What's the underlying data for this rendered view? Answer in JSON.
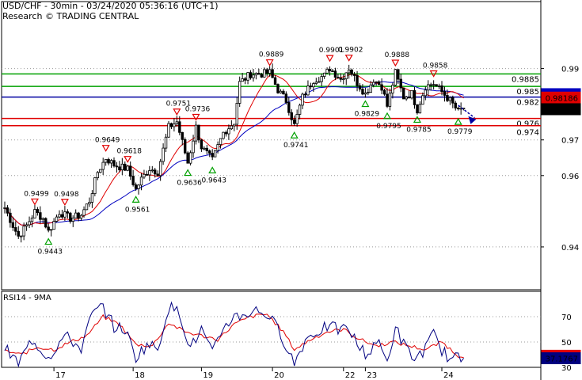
{
  "header": {
    "title": "USD/CHF - 30min - 03/24/2020 05:36:16 (UTC+1)",
    "subtitle": "Research © TRADING CENTRAL"
  },
  "colors": {
    "price": "#000000",
    "ma_short": "#e00000",
    "ma_long": "#0000c0",
    "support": "#e00000",
    "resistance": "#00a000",
    "pivot": "#0000a0",
    "current_bg": "#000000",
    "rsi_ma": "#e00000",
    "rsi": "#000080"
  },
  "chart_data": [
    {
      "type": "candlestick",
      "title": "USD/CHF - 30min - 03/24/2020 05:36:16 (UTC+1)",
      "ylim": [
        0.928,
        1.003
      ],
      "y_ticks": [
        "0.99",
        "0.97",
        "0.96",
        "0.94"
      ],
      "y_tick_values": [
        0.99,
        0.97,
        0.96,
        0.94
      ],
      "x_ticks": [
        "17",
        "18",
        "19",
        "20",
        "22",
        "23",
        "24"
      ],
      "x_tick_index": [
        18,
        47,
        72,
        98,
        124,
        132,
        160
      ],
      "n_bars": 200,
      "close_anchors": [
        [
          0,
          0.951
        ],
        [
          3,
          0.946
        ],
        [
          5,
          0.943
        ],
        [
          8,
          0.946
        ],
        [
          11,
          0.9499
        ],
        [
          14,
          0.948
        ],
        [
          16,
          0.9443
        ],
        [
          20,
          0.9498
        ],
        [
          24,
          0.948
        ],
        [
          28,
          0.949
        ],
        [
          31,
          0.953
        ],
        [
          34,
          0.961
        ],
        [
          37,
          0.9649
        ],
        [
          40,
          0.963
        ],
        [
          45,
          0.9618
        ],
        [
          48,
          0.9561
        ],
        [
          50,
          0.959
        ],
        [
          53,
          0.962
        ],
        [
          56,
          0.961
        ],
        [
          60,
          0.9736
        ],
        [
          63,
          0.9751
        ],
        [
          67,
          0.9636
        ],
        [
          70,
          0.9736
        ],
        [
          72,
          0.968
        ],
        [
          76,
          0.9643
        ],
        [
          80,
          0.972
        ],
        [
          84,
          0.975
        ],
        [
          86,
          0.986
        ],
        [
          90,
          0.9885
        ],
        [
          94,
          0.9885
        ],
        [
          97,
          0.9889
        ],
        [
          100,
          0.984
        ],
        [
          103,
          0.981
        ],
        [
          106,
          0.9741
        ],
        [
          109,
          0.982
        ],
        [
          113,
          0.9868
        ],
        [
          117,
          0.988
        ],
        [
          119,
          0.9901
        ],
        [
          123,
          0.987
        ],
        [
          126,
          0.9902
        ],
        [
          129,
          0.986
        ],
        [
          132,
          0.9829
        ],
        [
          135,
          0.987
        ],
        [
          138,
          0.985
        ],
        [
          140,
          0.9795
        ],
        [
          143,
          0.9888
        ],
        [
          146,
          0.982
        ],
        [
          149,
          0.983
        ],
        [
          151,
          0.9785
        ],
        [
          154,
          0.985
        ],
        [
          157,
          0.9858
        ],
        [
          160,
          0.9835
        ],
        [
          163,
          0.981
        ],
        [
          166,
          0.9779
        ],
        [
          168,
          0.979
        ]
      ],
      "levels": [
        {
          "label": "0.9885",
          "value": 0.9885,
          "kind": "resistance"
        },
        {
          "label": "0.985",
          "value": 0.985,
          "kind": "resistance"
        },
        {
          "label": "0.982",
          "value": 0.982,
          "kind": "pivot"
        },
        {
          "label": "0.976",
          "value": 0.976,
          "kind": "support"
        },
        {
          "label": "0.974",
          "value": 0.974,
          "kind": "support"
        }
      ],
      "current_tags": [
        {
          "label": "0.98282",
          "value": 0.98282,
          "kind": "ma_long"
        },
        {
          "label": "0.98186",
          "value": 0.98186,
          "kind": "ma_short"
        },
        {
          "label": "0.9786",
          "value": 0.9786,
          "kind": "current"
        }
      ],
      "annotations": [
        {
          "text": "0.9499",
          "index": 11,
          "value": 0.9499,
          "type": "high"
        },
        {
          "text": "0.9443",
          "index": 16,
          "value": 0.9443,
          "type": "low"
        },
        {
          "text": "0.9498",
          "index": 22,
          "value": 0.9498,
          "type": "high"
        },
        {
          "text": "0.9649",
          "index": 37,
          "value": 0.9649,
          "type": "high"
        },
        {
          "text": "0.9618",
          "index": 45,
          "value": 0.9618,
          "type": "high"
        },
        {
          "text": "0.9561",
          "index": 48,
          "value": 0.9561,
          "type": "low"
        },
        {
          "text": "0.9751",
          "index": 63,
          "value": 0.9751,
          "type": "high"
        },
        {
          "text": "0.9636",
          "index": 67,
          "value": 0.9636,
          "type": "low"
        },
        {
          "text": "0.9736",
          "index": 70,
          "value": 0.9736,
          "type": "high"
        },
        {
          "text": "0.9643",
          "index": 76,
          "value": 0.9643,
          "type": "low"
        },
        {
          "text": "0.9889",
          "index": 97,
          "value": 0.9889,
          "type": "high"
        },
        {
          "text": "0.9741",
          "index": 106,
          "value": 0.9741,
          "type": "low"
        },
        {
          "text": "0.9901",
          "index": 119,
          "value": 0.9901,
          "type": "high"
        },
        {
          "text": "0.9902",
          "index": 126,
          "value": 0.9902,
          "type": "high"
        },
        {
          "text": "0.9829",
          "index": 132,
          "value": 0.9829,
          "type": "low"
        },
        {
          "text": "0.9795",
          "index": 140,
          "value": 0.9795,
          "type": "low"
        },
        {
          "text": "0.9888",
          "index": 143,
          "value": 0.9888,
          "type": "high"
        },
        {
          "text": "0.9785",
          "index": 151,
          "value": 0.9785,
          "type": "low"
        },
        {
          "text": "0.9858",
          "index": 157,
          "value": 0.9858,
          "type": "high"
        },
        {
          "text": "0.9779",
          "index": 166,
          "value": 0.9779,
          "type": "low"
        }
      ],
      "projection": {
        "from": [
          166,
          0.9797
        ],
        "to": [
          172,
          0.9762
        ]
      }
    },
    {
      "type": "line",
      "title": "RSI14 - 9MA",
      "ylim": [
        30,
        90
      ],
      "y_ticks": [
        "70",
        "50",
        "30"
      ],
      "y_tick_values": [
        70,
        50,
        30
      ],
      "series": [
        {
          "name": "RSI14",
          "anchors": [
            [
              0,
              45
            ],
            [
              5,
              33
            ],
            [
              10,
              52
            ],
            [
              16,
              38
            ],
            [
              22,
              55
            ],
            [
              28,
              45
            ],
            [
              32,
              72
            ],
            [
              36,
              78
            ],
            [
              40,
              62
            ],
            [
              44,
              60
            ],
            [
              48,
              38
            ],
            [
              52,
              48
            ],
            [
              56,
              45
            ],
            [
              60,
              78
            ],
            [
              64,
              73
            ],
            [
              68,
              45
            ],
            [
              72,
              60
            ],
            [
              76,
              40
            ],
            [
              80,
              62
            ],
            [
              84,
              70
            ],
            [
              88,
              72
            ],
            [
              92,
              75
            ],
            [
              96,
              72
            ],
            [
              100,
              60
            ],
            [
              103,
              48
            ],
            [
              106,
              33
            ],
            [
              110,
              52
            ],
            [
              114,
              58
            ],
            [
              118,
              62
            ],
            [
              122,
              60
            ],
            [
              126,
              60
            ],
            [
              130,
              45
            ],
            [
              133,
              40
            ],
            [
              136,
              52
            ],
            [
              140,
              34
            ],
            [
              143,
              62
            ],
            [
              146,
              48
            ],
            [
              150,
              36
            ],
            [
              154,
              45
            ],
            [
              157,
              56
            ],
            [
              160,
              44
            ],
            [
              163,
              36
            ],
            [
              166,
              37.1767
            ]
          ]
        },
        {
          "name": "9MA",
          "anchors": [
            [
              0,
              43
            ],
            [
              6,
              40
            ],
            [
              12,
              46
            ],
            [
              18,
              44
            ],
            [
              24,
              50
            ],
            [
              30,
              55
            ],
            [
              36,
              70
            ],
            [
              42,
              64
            ],
            [
              48,
              48
            ],
            [
              54,
              47
            ],
            [
              60,
              65
            ],
            [
              66,
              58
            ],
            [
              72,
              55
            ],
            [
              78,
              52
            ],
            [
              84,
              64
            ],
            [
              90,
              70
            ],
            [
              96,
              72
            ],
            [
              102,
              58
            ],
            [
              106,
              44
            ],
            [
              112,
              52
            ],
            [
              118,
              58
            ],
            [
              124,
              60
            ],
            [
              130,
              52
            ],
            [
              136,
              47
            ],
            [
              142,
              50
            ],
            [
              148,
              47
            ],
            [
              154,
              44
            ],
            [
              160,
              50
            ],
            [
              166,
              39.1386
            ]
          ]
        }
      ],
      "current_tags": [
        {
          "label": "39.1386",
          "value": 39.1386,
          "kind": "rsi_ma"
        },
        {
          "label": "37.1767",
          "value": 37.1767,
          "kind": "rsi"
        }
      ]
    }
  ]
}
